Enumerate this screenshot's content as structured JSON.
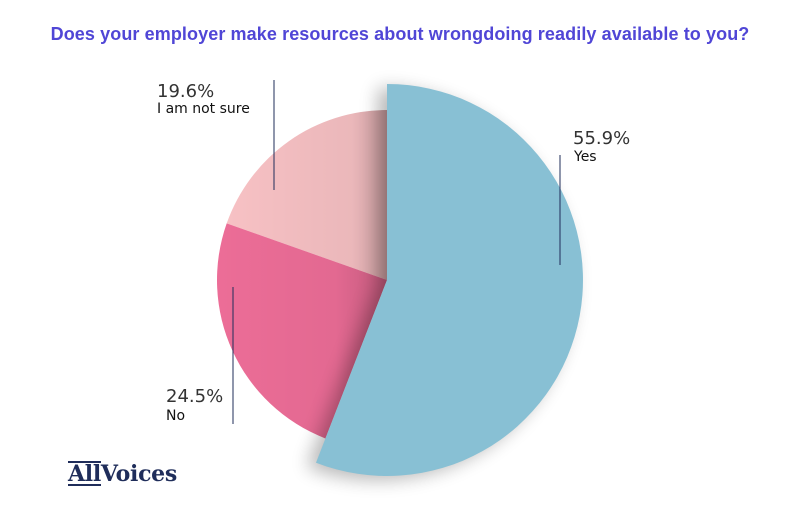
{
  "title": "Does your employer make resources about wrongdoing readily available to you?",
  "colors": {
    "title": "#5046d6",
    "yes": "#88c0d4",
    "no": "#ec6d97",
    "not_sure": "#f7c1c4",
    "label_text": "#222222",
    "leader_line": "#1f2d5a",
    "logo": "#1f2d5a"
  },
  "logo": {
    "part1": "All",
    "part2": "Voices"
  },
  "chart_data": {
    "type": "pie",
    "title": "Does your employer make resources about wrongdoing readily available to you?",
    "slices": [
      {
        "label": "Yes",
        "value": 55.9,
        "value_label": "55.9%"
      },
      {
        "label": "No",
        "value": 24.5,
        "value_label": "24.5%"
      },
      {
        "label": "I am not sure",
        "value": 19.6,
        "value_label": "19.6%"
      }
    ],
    "start_angle_deg": 0,
    "direction": "clockwise"
  }
}
